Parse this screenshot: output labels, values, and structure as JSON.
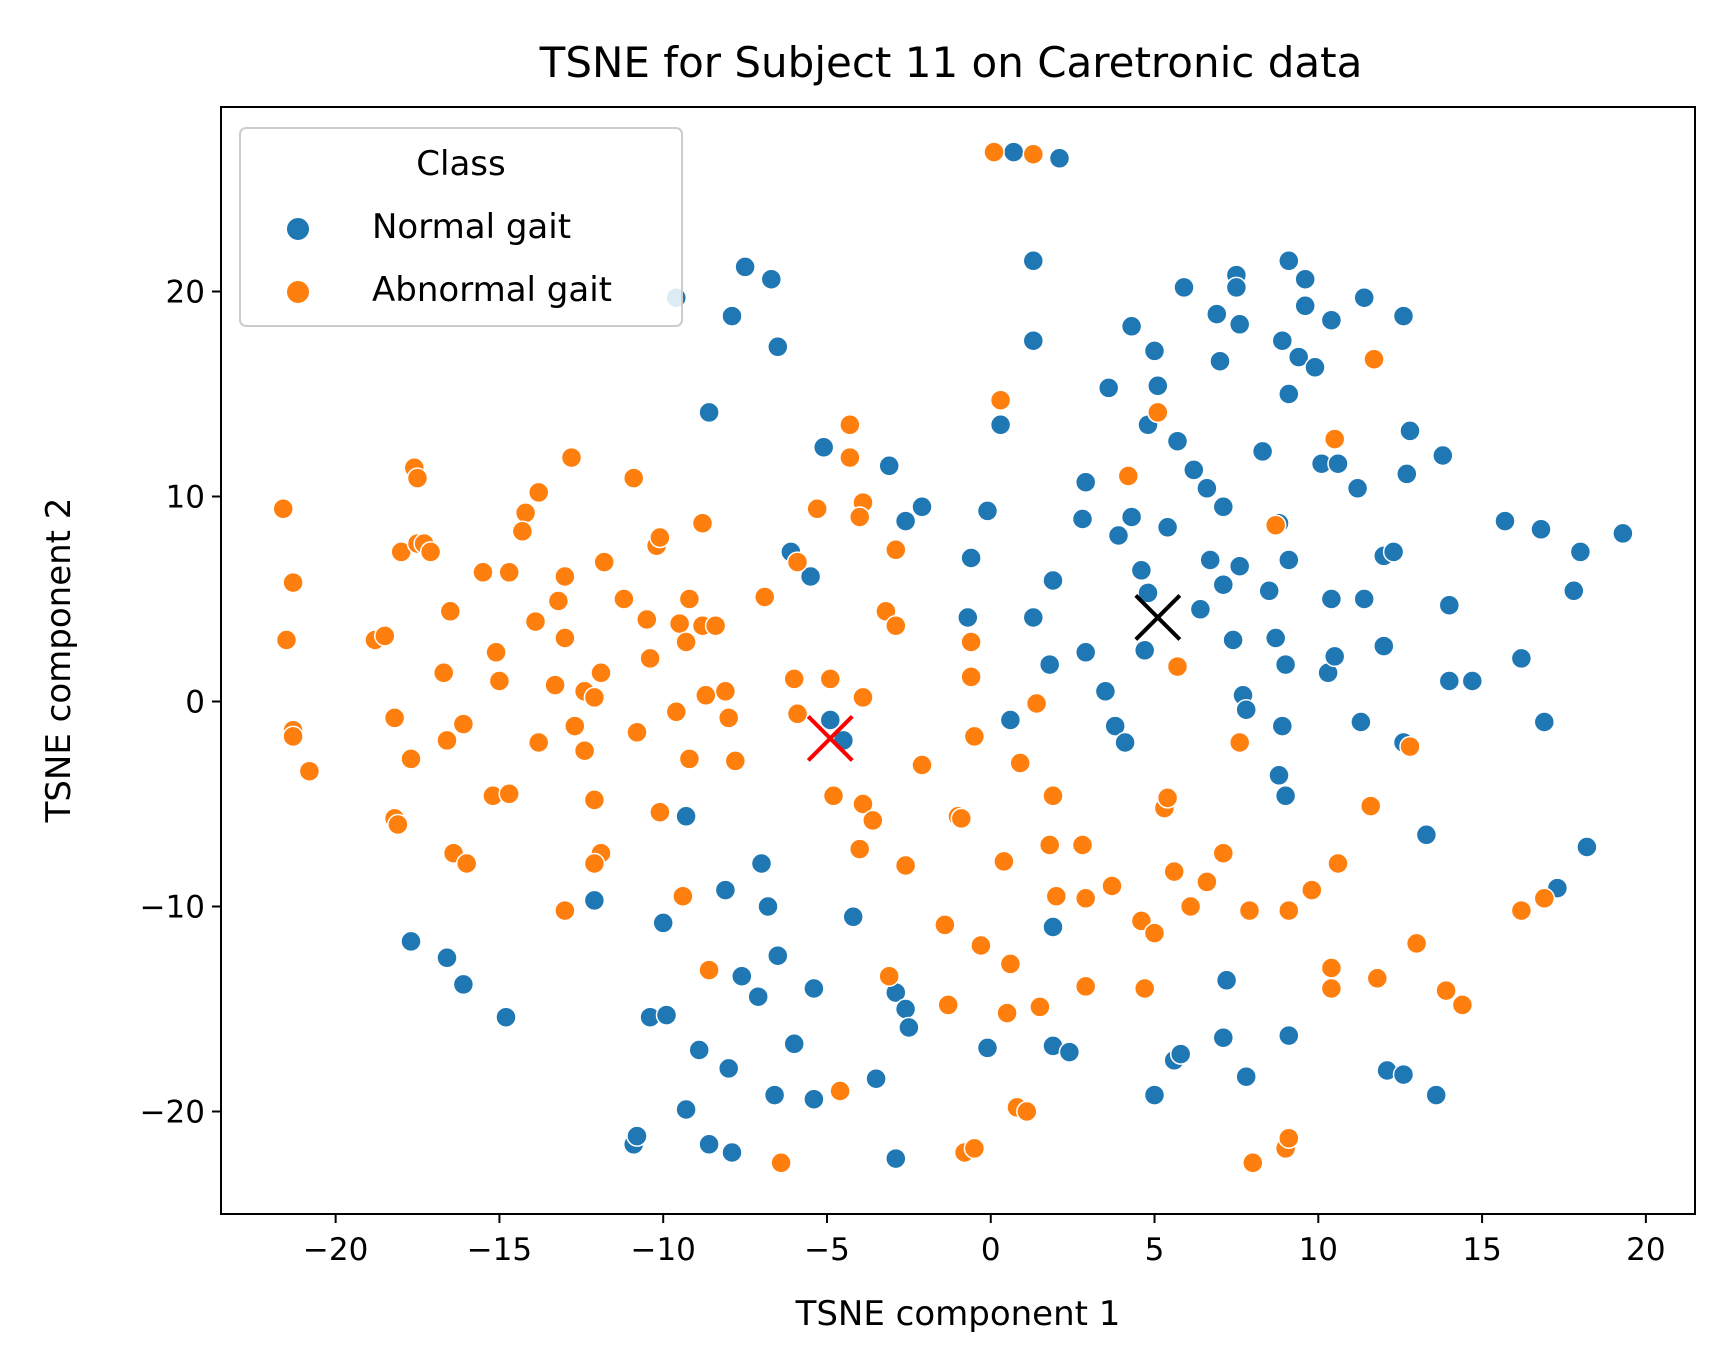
{
  "chart_data": {
    "type": "scatter",
    "title": "TSNE for Subject 11 on Caretronic data",
    "xlabel": "TSNE component 1",
    "ylabel": "TSNE component 2",
    "xlim": [
      -23.5,
      21.5
    ],
    "ylim": [
      -25,
      29
    ],
    "xticks": [
      -20,
      -15,
      -10,
      -5,
      0,
      5,
      10,
      15,
      20
    ],
    "xtick_labels": [
      "−20",
      "−15",
      "−10",
      "−5",
      "0",
      "5",
      "10",
      "15",
      "20"
    ],
    "yticks": [
      -20,
      -10,
      0,
      10,
      20
    ],
    "ytick_labels": [
      "−20",
      "−10",
      "0",
      "10",
      "20"
    ],
    "grid": false,
    "legend": {
      "title": "Class",
      "placement": "top-left",
      "entries": [
        {
          "label": "Normal gait",
          "color": "#1f77b4"
        },
        {
          "label": "Abnormal gait",
          "color": "#ff7f0e"
        }
      ]
    },
    "series": [
      {
        "name": "Normal gait",
        "color": "#1f77b4",
        "points": [
          [
            -9.6,
            19.7
          ],
          [
            -7.5,
            21.2
          ],
          [
            -6.7,
            20.6
          ],
          [
            -7.9,
            18.8
          ],
          [
            -6.5,
            17.3
          ],
          [
            -8.6,
            14.1
          ],
          [
            0.7,
            26.8
          ],
          [
            2.1,
            26.5
          ],
          [
            1.3,
            21.5
          ],
          [
            1.3,
            17.6
          ],
          [
            0.3,
            13.5
          ],
          [
            -5.1,
            12.4
          ],
          [
            -3.1,
            11.5
          ],
          [
            -2.6,
            8.8
          ],
          [
            -2.1,
            9.5
          ],
          [
            -0.1,
            9.3
          ],
          [
            -0.6,
            7.0
          ],
          [
            -6.1,
            7.3
          ],
          [
            -5.5,
            6.1
          ],
          [
            -0.7,
            4.1
          ],
          [
            1.3,
            4.1
          ],
          [
            1.9,
            5.9
          ],
          [
            1.8,
            1.8
          ],
          [
            2.9,
            2.4
          ],
          [
            3.5,
            0.5
          ],
          [
            3.8,
            -1.2
          ],
          [
            4.1,
            -2.0
          ],
          [
            0.6,
            -0.9
          ],
          [
            -4.9,
            -0.9
          ],
          [
            -4.5,
            -1.9
          ],
          [
            4.3,
            18.3
          ],
          [
            5.0,
            17.1
          ],
          [
            5.1,
            15.4
          ],
          [
            4.8,
            13.5
          ],
          [
            5.7,
            12.7
          ],
          [
            6.2,
            11.3
          ],
          [
            3.6,
            15.3
          ],
          [
            2.9,
            10.7
          ],
          [
            2.8,
            8.9
          ],
          [
            3.9,
            8.1
          ],
          [
            4.3,
            9.0
          ],
          [
            5.4,
            8.5
          ],
          [
            4.6,
            6.4
          ],
          [
            4.8,
            5.3
          ],
          [
            4.7,
            2.5
          ],
          [
            6.4,
            4.5
          ],
          [
            6.7,
            6.9
          ],
          [
            7.1,
            5.7
          ],
          [
            7.6,
            6.6
          ],
          [
            7.4,
            3.0
          ],
          [
            7.7,
            0.3
          ],
          [
            7.8,
            -0.4
          ],
          [
            8.5,
            5.4
          ],
          [
            8.7,
            3.1
          ],
          [
            9.1,
            6.9
          ],
          [
            9.0,
            1.8
          ],
          [
            8.9,
            -1.2
          ],
          [
            8.8,
            -3.6
          ],
          [
            9.0,
            -4.6
          ],
          [
            10.3,
            1.4
          ],
          [
            10.4,
            5.0
          ],
          [
            10.5,
            2.2
          ],
          [
            11.4,
            5.0
          ],
          [
            11.3,
            -1.0
          ],
          [
            12.0,
            2.7
          ],
          [
            12.0,
            7.1
          ],
          [
            12.3,
            7.3
          ],
          [
            12.6,
            -2.0
          ],
          [
            5.9,
            20.2
          ],
          [
            6.9,
            18.9
          ],
          [
            7.0,
            16.6
          ],
          [
            7.5,
            20.8
          ],
          [
            7.5,
            20.2
          ],
          [
            7.6,
            18.4
          ],
          [
            8.3,
            12.2
          ],
          [
            8.9,
            17.6
          ],
          [
            9.1,
            21.5
          ],
          [
            9.1,
            15.0
          ],
          [
            9.4,
            16.8
          ],
          [
            9.6,
            19.3
          ],
          [
            9.6,
            20.6
          ],
          [
            9.9,
            16.3
          ],
          [
            10.1,
            11.6
          ],
          [
            10.4,
            18.6
          ],
          [
            10.6,
            11.6
          ],
          [
            11.2,
            10.4
          ],
          [
            11.4,
            19.7
          ],
          [
            12.6,
            18.8
          ],
          [
            12.8,
            13.2
          ],
          [
            12.7,
            11.1
          ],
          [
            13.8,
            12.0
          ],
          [
            15.7,
            8.8
          ],
          [
            16.8,
            8.4
          ],
          [
            18.0,
            7.3
          ],
          [
            19.3,
            8.2
          ],
          [
            17.8,
            5.4
          ],
          [
            14.0,
            4.7
          ],
          [
            14.0,
            1.0
          ],
          [
            14.7,
            1.0
          ],
          [
            16.2,
            2.1
          ],
          [
            16.9,
            -1.0
          ],
          [
            6.6,
            10.4
          ],
          [
            7.1,
            9.5
          ],
          [
            8.8,
            8.7
          ],
          [
            13.3,
            -6.5
          ],
          [
            17.3,
            -9.1
          ],
          [
            18.2,
            -7.1
          ],
          [
            -12.1,
            -9.7
          ],
          [
            -17.7,
            -11.7
          ],
          [
            -16.6,
            -12.5
          ],
          [
            -16.1,
            -13.8
          ],
          [
            -14.8,
            -15.4
          ],
          [
            -10.4,
            -15.4
          ],
          [
            -9.9,
            -15.3
          ],
          [
            -9.3,
            -5.6
          ],
          [
            -10.0,
            -10.8
          ],
          [
            -8.9,
            -17.0
          ],
          [
            -8.0,
            -17.9
          ],
          [
            -7.6,
            -13.4
          ],
          [
            -7.1,
            -14.4
          ],
          [
            -8.1,
            -9.2
          ],
          [
            -7.0,
            -7.9
          ],
          [
            -6.8,
            -10.0
          ],
          [
            -6.5,
            -12.4
          ],
          [
            -5.4,
            -14.0
          ],
          [
            -6.0,
            -16.7
          ],
          [
            -9.3,
            -19.9
          ],
          [
            -8.6,
            -21.6
          ],
          [
            -7.9,
            -22.0
          ],
          [
            -6.6,
            -19.2
          ],
          [
            -5.4,
            -19.4
          ],
          [
            -4.2,
            -10.5
          ],
          [
            -3.5,
            -18.4
          ],
          [
            -2.9,
            -14.2
          ],
          [
            -2.6,
            -15.0
          ],
          [
            -2.5,
            -15.9
          ],
          [
            -2.9,
            -22.3
          ],
          [
            -10.9,
            -21.6
          ],
          [
            -10.8,
            -21.2
          ],
          [
            -0.1,
            -16.9
          ],
          [
            1.9,
            -16.8
          ],
          [
            2.4,
            -17.1
          ],
          [
            1.9,
            -11.0
          ],
          [
            5.0,
            -19.2
          ],
          [
            5.6,
            -17.5
          ],
          [
            5.8,
            -17.2
          ],
          [
            7.1,
            -16.4
          ],
          [
            7.2,
            -13.6
          ],
          [
            7.8,
            -18.3
          ],
          [
            9.1,
            -16.3
          ],
          [
            12.1,
            -18.0
          ],
          [
            12.6,
            -18.2
          ],
          [
            13.6,
            -19.2
          ]
        ]
      },
      {
        "name": "Abnormal gait",
        "color": "#ff7f0e",
        "points": [
          [
            0.1,
            26.8
          ],
          [
            1.3,
            26.7
          ],
          [
            0.3,
            14.7
          ],
          [
            5.1,
            14.1
          ],
          [
            11.7,
            16.7
          ],
          [
            10.5,
            12.8
          ],
          [
            4.2,
            11.0
          ],
          [
            8.7,
            8.6
          ],
          [
            5.7,
            1.7
          ],
          [
            -4.3,
            13.5
          ],
          [
            -4.3,
            11.9
          ],
          [
            -3.9,
            9.7
          ],
          [
            -4.0,
            9.0
          ],
          [
            -5.3,
            9.4
          ],
          [
            -2.9,
            7.4
          ],
          [
            -3.2,
            4.4
          ],
          [
            -2.9,
            3.7
          ],
          [
            -5.9,
            6.8
          ],
          [
            -6.9,
            5.1
          ],
          [
            -8.8,
            8.7
          ],
          [
            -8.8,
            3.7
          ],
          [
            -9.5,
            3.8
          ],
          [
            -9.3,
            2.9
          ],
          [
            -10.2,
            7.6
          ],
          [
            -10.1,
            8.0
          ],
          [
            -9.2,
            5.0
          ],
          [
            -4.9,
            1.1
          ],
          [
            -6.0,
            1.1
          ],
          [
            -5.9,
            -0.6
          ],
          [
            -3.9,
            0.2
          ],
          [
            -0.6,
            2.9
          ],
          [
            -0.6,
            1.2
          ],
          [
            -0.5,
            -1.7
          ],
          [
            1.4,
            -0.1
          ],
          [
            0.9,
            -3.0
          ],
          [
            -2.1,
            -3.1
          ],
          [
            -1.0,
            -5.6
          ],
          [
            -0.9,
            -5.7
          ],
          [
            1.9,
            -4.6
          ],
          [
            1.8,
            -7.0
          ],
          [
            2.8,
            -7.0
          ],
          [
            0.4,
            -7.8
          ],
          [
            -3.9,
            -5.0
          ],
          [
            -3.6,
            -5.8
          ],
          [
            -4.0,
            -7.2
          ],
          [
            -2.6,
            -8.0
          ],
          [
            -4.8,
            -4.6
          ],
          [
            -4.6,
            -19.0
          ],
          [
            -3.1,
            -13.4
          ],
          [
            -1.4,
            -10.9
          ],
          [
            -1.3,
            -14.8
          ],
          [
            -0.3,
            -11.9
          ],
          [
            0.6,
            -12.8
          ],
          [
            0.5,
            -15.2
          ],
          [
            1.5,
            -14.9
          ],
          [
            2.0,
            -9.5
          ],
          [
            3.7,
            -9.0
          ],
          [
            2.9,
            -9.6
          ],
          [
            2.9,
            -13.9
          ],
          [
            4.6,
            -10.7
          ],
          [
            4.7,
            -14.0
          ],
          [
            5.0,
            -11.3
          ],
          [
            5.3,
            -5.2
          ],
          [
            5.4,
            -4.7
          ],
          [
            5.6,
            -8.3
          ],
          [
            6.1,
            -10.0
          ],
          [
            6.6,
            -8.8
          ],
          [
            7.1,
            -7.4
          ],
          [
            7.6,
            -2.0
          ],
          [
            7.9,
            -10.2
          ],
          [
            8.0,
            -22.5
          ],
          [
            9.0,
            -21.8
          ],
          [
            9.1,
            -21.3
          ],
          [
            9.1,
            -10.2
          ],
          [
            9.8,
            -9.2
          ],
          [
            10.4,
            -13.0
          ],
          [
            10.4,
            -14.0
          ],
          [
            10.6,
            -7.9
          ],
          [
            11.6,
            -5.1
          ],
          [
            11.8,
            -13.5
          ],
          [
            12.8,
            -2.2
          ],
          [
            13.0,
            -11.8
          ],
          [
            13.9,
            -14.1
          ],
          [
            14.4,
            -14.8
          ],
          [
            16.2,
            -10.2
          ],
          [
            16.9,
            -9.6
          ],
          [
            0.8,
            -19.8
          ],
          [
            1.1,
            -20.0
          ],
          [
            -0.8,
            -22.0
          ],
          [
            -0.5,
            -21.8
          ],
          [
            -6.4,
            -22.5
          ],
          [
            -21.6,
            9.4
          ],
          [
            -21.3,
            5.8
          ],
          [
            -21.5,
            3.0
          ],
          [
            -21.3,
            -1.4
          ],
          [
            -21.3,
            -1.7
          ],
          [
            -20.8,
            -3.4
          ],
          [
            -18.8,
            3.0
          ],
          [
            -18.5,
            3.2
          ],
          [
            -18.2,
            -0.8
          ],
          [
            -18.2,
            -5.7
          ],
          [
            -18.1,
            -6.0
          ],
          [
            -18.0,
            7.3
          ],
          [
            -17.5,
            7.7
          ],
          [
            -17.3,
            7.7
          ],
          [
            -17.6,
            11.4
          ],
          [
            -17.5,
            10.9
          ],
          [
            -17.1,
            7.3
          ],
          [
            -17.7,
            -2.8
          ],
          [
            -16.7,
            1.4
          ],
          [
            -16.5,
            4.4
          ],
          [
            -16.6,
            -1.9
          ],
          [
            -16.1,
            -1.1
          ],
          [
            -16.4,
            -7.4
          ],
          [
            -16.0,
            -7.9
          ],
          [
            -15.5,
            6.3
          ],
          [
            -15.1,
            2.4
          ],
          [
            -15.0,
            1.0
          ],
          [
            -15.2,
            -4.6
          ],
          [
            -14.7,
            -4.5
          ],
          [
            -14.7,
            6.3
          ],
          [
            -14.2,
            9.2
          ],
          [
            -14.3,
            8.3
          ],
          [
            -13.9,
            3.9
          ],
          [
            -13.8,
            10.2
          ],
          [
            -13.0,
            6.1
          ],
          [
            -13.2,
            4.9
          ],
          [
            -13.0,
            3.1
          ],
          [
            -12.8,
            11.9
          ],
          [
            -13.3,
            0.8
          ],
          [
            -13.8,
            -2.0
          ],
          [
            -12.7,
            -1.2
          ],
          [
            -12.4,
            0.5
          ],
          [
            -12.1,
            0.2
          ],
          [
            -11.9,
            1.4
          ],
          [
            -12.4,
            -2.4
          ],
          [
            -12.1,
            -4.8
          ],
          [
            -11.9,
            -7.4
          ],
          [
            -11.8,
            6.8
          ],
          [
            -12.1,
            -7.9
          ],
          [
            -13.0,
            -10.2
          ],
          [
            -11.2,
            5.0
          ],
          [
            -10.9,
            10.9
          ],
          [
            -10.5,
            4.0
          ],
          [
            -10.8,
            -1.5
          ],
          [
            -10.4,
            2.1
          ],
          [
            -10.1,
            -5.4
          ],
          [
            -9.6,
            -0.5
          ],
          [
            -9.4,
            -9.5
          ],
          [
            -9.2,
            -2.8
          ],
          [
            -8.7,
            0.3
          ],
          [
            -8.4,
            3.7
          ],
          [
            -8.1,
            0.5
          ],
          [
            -8.0,
            -0.8
          ],
          [
            -7.8,
            -2.9
          ],
          [
            -8.6,
            -13.1
          ]
        ]
      }
    ],
    "markers": [
      {
        "label": "Normal gait centroid",
        "x": 5.1,
        "y": 4.1,
        "color": "#000000",
        "symbol": "x"
      },
      {
        "label": "Abnormal gait centroid",
        "x": -4.9,
        "y": -1.8,
        "color": "#ff0000",
        "symbol": "x"
      }
    ]
  }
}
